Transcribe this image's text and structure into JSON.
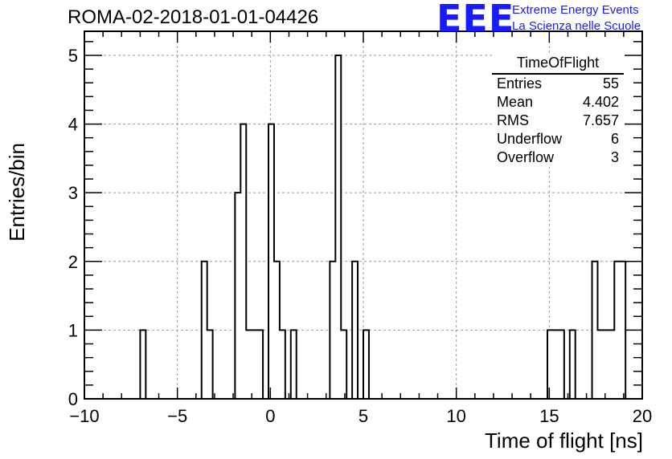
{
  "header": {
    "run_title": "ROMA-02-2018-01-01-04426",
    "logo_mark": "EEE",
    "logo_line1": "Extreme Energy Events",
    "logo_line2": "La Scienza nelle Scuole",
    "logo_color": "#1a1aff"
  },
  "stats": {
    "title": "TimeOfFlight",
    "rows": [
      {
        "label": "Entries",
        "value": "55"
      },
      {
        "label": "Mean",
        "value": "4.402"
      },
      {
        "label": "RMS",
        "value": "7.657"
      },
      {
        "label": "Underflow",
        "value": "6"
      },
      {
        "label": "Overflow",
        "value": "3"
      }
    ]
  },
  "chart_data": {
    "type": "bar",
    "style": "step-histogram",
    "title": "ROMA-02-2018-01-01-04426",
    "xlabel": "Time of flight [ns]",
    "ylabel": "Entries/bin",
    "xlim": [
      -10,
      20
    ],
    "ylim": [
      0,
      5.35
    ],
    "bin_width": 0.3,
    "grid": true,
    "legend": "top-right",
    "xticks": [
      -10,
      -5,
      0,
      5,
      10,
      15,
      20
    ],
    "xtick_labels": [
      "−10",
      "−5",
      "0",
      "5",
      "10",
      "15",
      "20"
    ],
    "yticks": [
      0,
      1,
      2,
      3,
      4,
      5
    ],
    "ytick_labels": [
      "0",
      "1",
      "2",
      "3",
      "4",
      "5"
    ],
    "bins": [
      {
        "x_low": -7.0,
        "count": 1
      },
      {
        "x_low": -3.7,
        "count": 2
      },
      {
        "x_low": -3.4,
        "count": 1
      },
      {
        "x_low": -1.9,
        "count": 3
      },
      {
        "x_low": -1.6,
        "count": 4
      },
      {
        "x_low": -1.3,
        "count": 1
      },
      {
        "x_low": -1.0,
        "count": 1
      },
      {
        "x_low": -0.7,
        "count": 1
      },
      {
        "x_low": -0.1,
        "count": 4
      },
      {
        "x_low": 0.2,
        "count": 2
      },
      {
        "x_low": 0.5,
        "count": 1
      },
      {
        "x_low": 1.1,
        "count": 1
      },
      {
        "x_low": 3.2,
        "count": 2
      },
      {
        "x_low": 3.5,
        "count": 5
      },
      {
        "x_low": 3.8,
        "count": 1
      },
      {
        "x_low": 4.4,
        "count": 2
      },
      {
        "x_low": 5.0,
        "count": 1
      },
      {
        "x_low": 14.9,
        "count": 1
      },
      {
        "x_low": 15.2,
        "count": 1
      },
      {
        "x_low": 15.5,
        "count": 1
      },
      {
        "x_low": 16.1,
        "count": 1
      },
      {
        "x_low": 17.3,
        "count": 2
      },
      {
        "x_low": 17.6,
        "count": 1
      },
      {
        "x_low": 17.9,
        "count": 1
      },
      {
        "x_low": 18.2,
        "count": 1
      },
      {
        "x_low": 18.5,
        "count": 2
      },
      {
        "x_low": 18.8,
        "count": 2
      }
    ]
  }
}
